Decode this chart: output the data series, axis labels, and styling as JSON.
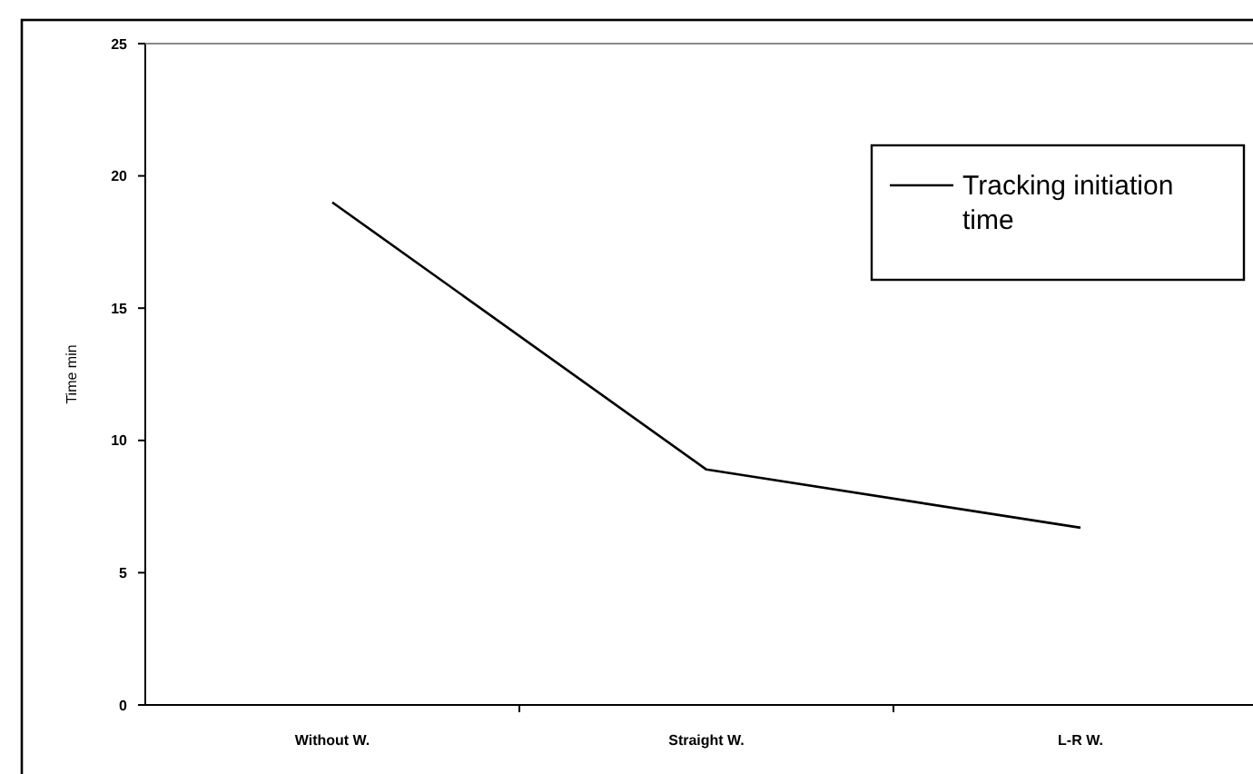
{
  "chart_data": {
    "type": "line",
    "ylabel": "Time min",
    "categories": [
      "Without W.",
      "Straight W.",
      "L-R W."
    ],
    "series": [
      {
        "name": "Tracking initiation time",
        "color": "#000000",
        "values": [
          19,
          8.9,
          6.7
        ]
      }
    ],
    "ylim": [
      0,
      25
    ],
    "yticks": [
      0,
      5,
      10,
      15,
      20,
      25
    ],
    "grid": false,
    "legend": "top right",
    "marker": "none",
    "line_style": "solid"
  }
}
